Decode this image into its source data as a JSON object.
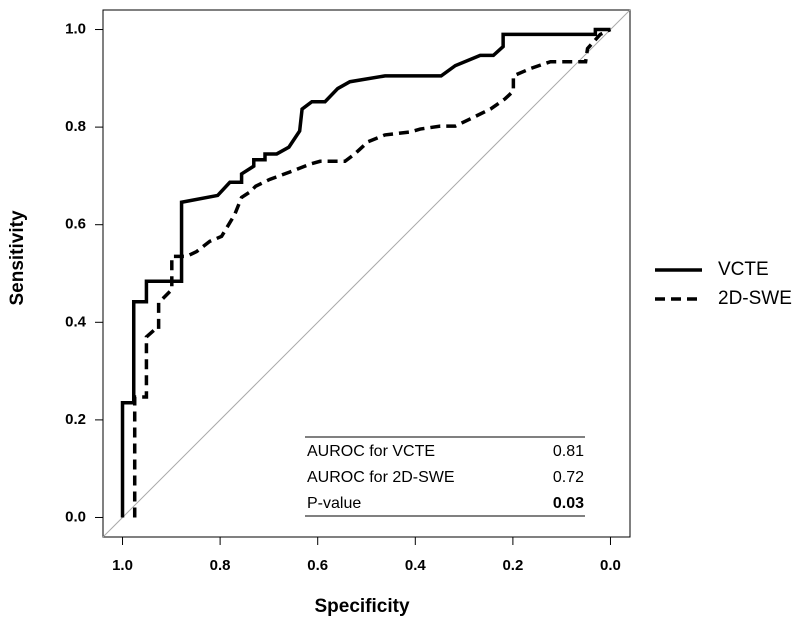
{
  "chart_data": {
    "type": "line",
    "xlabel": "Specificity",
    "ylabel": "Sensitivity",
    "xlim": [
      1.04,
      -0.04
    ],
    "ylim": [
      -0.04,
      1.04
    ],
    "xticks": [
      {
        "value": 1,
        "label": "1.0"
      },
      0.8,
      0.6,
      0.4,
      0.2,
      {
        "value": 0,
        "label": "0.0"
      }
    ],
    "yticks": [
      {
        "value": 0,
        "label": "0.0"
      },
      0.2,
      0.4,
      0.6,
      0.8,
      {
        "value": 1,
        "label": "1.0"
      }
    ],
    "legend": "right",
    "series": [
      {
        "name": "VCTE",
        "color": "#000000",
        "line_style": "solid",
        "x": [
          1.0,
          1.0,
          0.977,
          0.977,
          0.951,
          0.951,
          0.879,
          0.879,
          0.805,
          0.78,
          0.756,
          0.756,
          0.731,
          0.731,
          0.708,
          0.708,
          0.684,
          0.659,
          0.637,
          0.632,
          0.612,
          0.585,
          0.559,
          0.534,
          0.462,
          0.347,
          0.318,
          0.267,
          0.24,
          0.22,
          0.22,
          0.031,
          0.031,
          0.0
        ],
        "values": [
          0.0,
          0.235,
          0.235,
          0.442,
          0.442,
          0.484,
          0.484,
          0.646,
          0.66,
          0.687,
          0.687,
          0.704,
          0.72,
          0.733,
          0.733,
          0.745,
          0.745,
          0.759,
          0.792,
          0.837,
          0.852,
          0.852,
          0.879,
          0.893,
          0.905,
          0.905,
          0.926,
          0.947,
          0.947,
          0.965,
          0.99,
          0.99,
          1.0,
          1.0
        ]
      },
      {
        "name": "2D-SWE",
        "color": "#000000",
        "line_style": "dashed",
        "x": [
          0.975,
          0.975,
          0.951,
          0.951,
          0.934,
          0.926,
          0.926,
          0.899,
          0.899,
          0.869,
          0.848,
          0.821,
          0.797,
          0.77,
          0.756,
          0.739,
          0.727,
          0.698,
          0.657,
          0.616,
          0.595,
          0.544,
          0.524,
          0.497,
          0.462,
          0.411,
          0.39,
          0.349,
          0.318,
          0.287,
          0.246,
          0.216,
          0.199,
          0.199,
          0.164,
          0.123,
          0.051,
          0.047,
          0.021,
          0.0
        ],
        "values": [
          0.0,
          0.247,
          0.247,
          0.37,
          0.385,
          0.385,
          0.44,
          0.467,
          0.535,
          0.535,
          0.545,
          0.566,
          0.576,
          0.621,
          0.656,
          0.667,
          0.679,
          0.693,
          0.708,
          0.724,
          0.73,
          0.73,
          0.745,
          0.77,
          0.784,
          0.79,
          0.796,
          0.802,
          0.802,
          0.817,
          0.837,
          0.858,
          0.874,
          0.905,
          0.92,
          0.934,
          0.934,
          0.961,
          0.99,
          1.0
        ]
      }
    ],
    "annotation_table": {
      "rows": [
        [
          "AUROC for VCTE",
          0.81
        ],
        [
          "AUROC for 2D-SWE",
          0.72
        ],
        [
          "P-value",
          0.03
        ]
      ]
    }
  }
}
